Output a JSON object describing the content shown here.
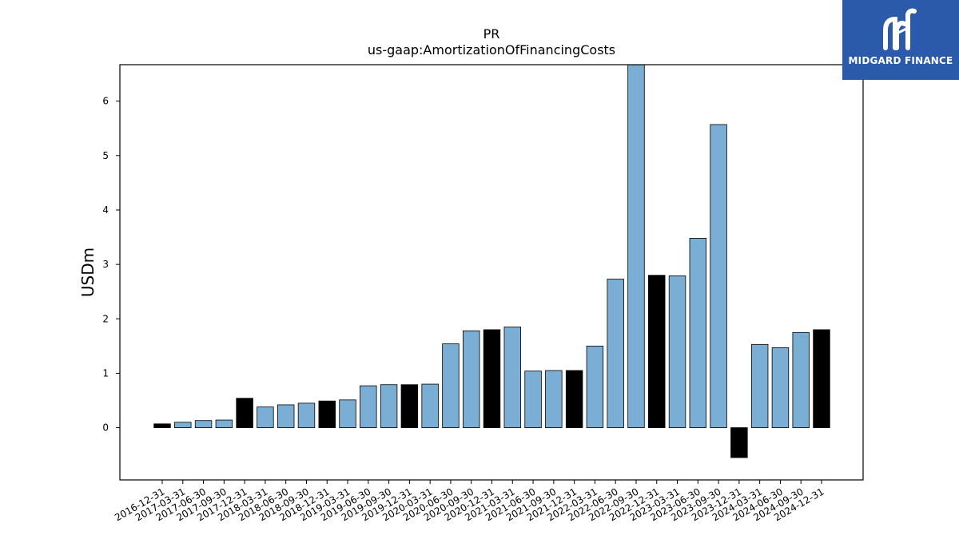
{
  "chart_data": {
    "type": "bar",
    "title": "PR",
    "subtitle": "us-gaap:AmortizationOfFinancingCosts",
    "xlabel": "",
    "ylabel": "USDm",
    "ylim": [
      -0.96,
      6.67
    ],
    "yticks": [
      0,
      1,
      2,
      3,
      4,
      5,
      6
    ],
    "grid": false,
    "categories": [
      "2016-12-31",
      "2017-03-31",
      "2017-06-30",
      "2017-09-30",
      "2017-12-31",
      "2018-03-31",
      "2018-06-30",
      "2018-09-30",
      "2018-12-31",
      "2019-03-31",
      "2019-06-30",
      "2019-09-30",
      "2019-12-31",
      "2020-03-31",
      "2020-06-30",
      "2020-09-30",
      "2020-12-31",
      "2021-03-31",
      "2021-06-30",
      "2021-09-30",
      "2021-12-31",
      "2022-03-31",
      "2022-06-30",
      "2022-09-30",
      "2022-12-31",
      "2023-03-31",
      "2023-06-30",
      "2023-09-30",
      "2023-12-31",
      "2024-03-31",
      "2024-06-30",
      "2024-09-30",
      "2024-12-31"
    ],
    "values": [
      0.07,
      0.1,
      0.13,
      0.14,
      0.54,
      0.38,
      0.42,
      0.45,
      0.49,
      0.51,
      0.77,
      0.79,
      0.79,
      0.8,
      1.54,
      1.78,
      1.8,
      1.85,
      1.04,
      1.05,
      1.05,
      1.5,
      2.73,
      6.7,
      2.8,
      2.79,
      3.48,
      5.57,
      -0.55,
      1.53,
      1.47,
      1.75,
      1.8
    ],
    "bar_colors": [
      "#000000",
      "#7aaed4",
      "#7aaed4",
      "#7aaed4",
      "#000000",
      "#7aaed4",
      "#7aaed4",
      "#7aaed4",
      "#000000",
      "#7aaed4",
      "#7aaed4",
      "#7aaed4",
      "#000000",
      "#7aaed4",
      "#7aaed4",
      "#7aaed4",
      "#000000",
      "#7aaed4",
      "#7aaed4",
      "#7aaed4",
      "#000000",
      "#7aaed4",
      "#7aaed4",
      "#7aaed4",
      "#000000",
      "#7aaed4",
      "#7aaed4",
      "#7aaed4",
      "#000000",
      "#7aaed4",
      "#7aaed4",
      "#7aaed4",
      "#000000"
    ]
  },
  "logo": {
    "text": "MIDGARD FINANCE",
    "background": "#2a5aa9"
  }
}
